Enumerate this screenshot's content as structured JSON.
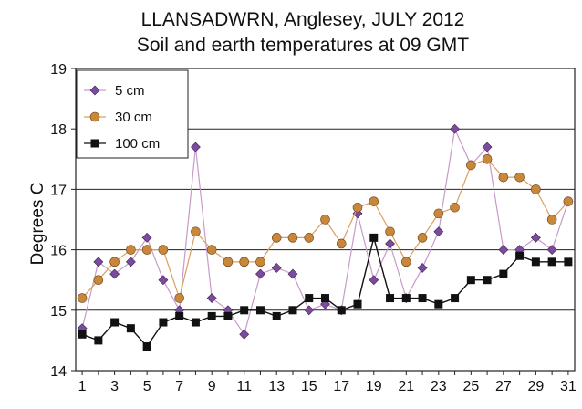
{
  "chart_data": {
    "type": "line",
    "title": "LLANSADWRN, Anglesey, JULY 2012",
    "subtitle": "Soil and earth temperatures at 09 GMT",
    "xlabel": "",
    "ylabel": "Degrees C",
    "xlim": [
      1,
      31
    ],
    "ylim": [
      14,
      19
    ],
    "x_ticks": [
      1,
      3,
      5,
      7,
      9,
      11,
      13,
      15,
      17,
      19,
      21,
      23,
      25,
      27,
      29,
      31
    ],
    "y_ticks": [
      14,
      15,
      16,
      17,
      18,
      19
    ],
    "grid": "horizontal",
    "legend_position": "top-left",
    "x": [
      1,
      2,
      3,
      4,
      5,
      6,
      7,
      8,
      9,
      10,
      11,
      12,
      13,
      14,
      15,
      16,
      17,
      18,
      19,
      20,
      21,
      22,
      23,
      24,
      25,
      26,
      27,
      28,
      29,
      30,
      31
    ],
    "series": [
      {
        "name": "5 cm",
        "color": "#7b4b9e",
        "line_color": "#c89ac9",
        "marker": "diamond",
        "values": [
          14.7,
          15.8,
          15.6,
          15.8,
          16.2,
          15.5,
          15.0,
          17.7,
          15.2,
          15.0,
          14.6,
          15.6,
          15.7,
          15.6,
          15.0,
          15.1,
          15.0,
          16.6,
          15.5,
          16.1,
          15.2,
          15.7,
          16.3,
          18.0,
          17.4,
          17.7,
          16.0,
          16.0,
          16.2,
          16.0,
          16.8
        ]
      },
      {
        "name": "30 cm",
        "color": "#c8873a",
        "line_color": "#d8a060",
        "marker": "circle",
        "values": [
          15.2,
          15.5,
          15.8,
          16.0,
          16.0,
          16.0,
          15.2,
          16.3,
          16.0,
          15.8,
          15.8,
          15.8,
          16.2,
          16.2,
          16.2,
          16.5,
          16.1,
          16.7,
          16.8,
          16.3,
          15.8,
          16.2,
          16.6,
          16.7,
          17.4,
          17.5,
          17.2,
          17.2,
          17.0,
          16.5,
          16.8
        ]
      },
      {
        "name": "100 cm",
        "color": "#111111",
        "line_color": "#111111",
        "marker": "square",
        "values": [
          14.6,
          14.5,
          14.8,
          14.7,
          14.4,
          14.8,
          14.9,
          14.8,
          14.9,
          14.9,
          15.0,
          15.0,
          14.9,
          15.0,
          15.2,
          15.2,
          15.0,
          15.1,
          16.2,
          15.2,
          15.2,
          15.2,
          15.1,
          15.2,
          15.5,
          15.5,
          15.6,
          15.9,
          15.8,
          15.8,
          15.8
        ]
      }
    ]
  }
}
